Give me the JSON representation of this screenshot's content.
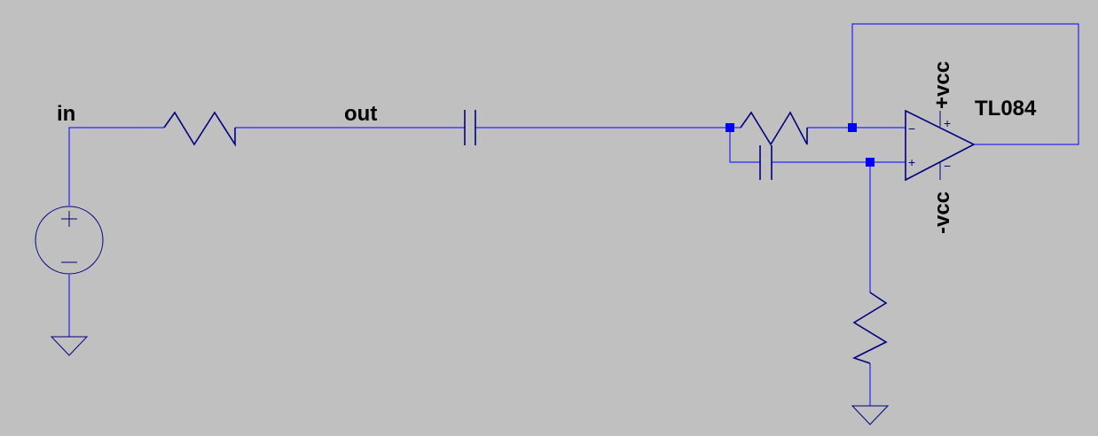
{
  "schematic": {
    "net_labels": {
      "input": "in",
      "output": "out",
      "positive_supply": "+vcc",
      "negative_supply": "-vcc"
    },
    "opamp": {
      "part": "TL084",
      "inverting_sign": "−",
      "noninverting_sign": "+",
      "supply_plus_sign": "+",
      "supply_minus_sign": "−"
    },
    "source": {
      "plus_sign": "+",
      "minus_sign": "−"
    },
    "colors": {
      "background": "#c0c0c0",
      "wire": "#0000ff",
      "component": "#000080",
      "label": "#000000"
    }
  }
}
